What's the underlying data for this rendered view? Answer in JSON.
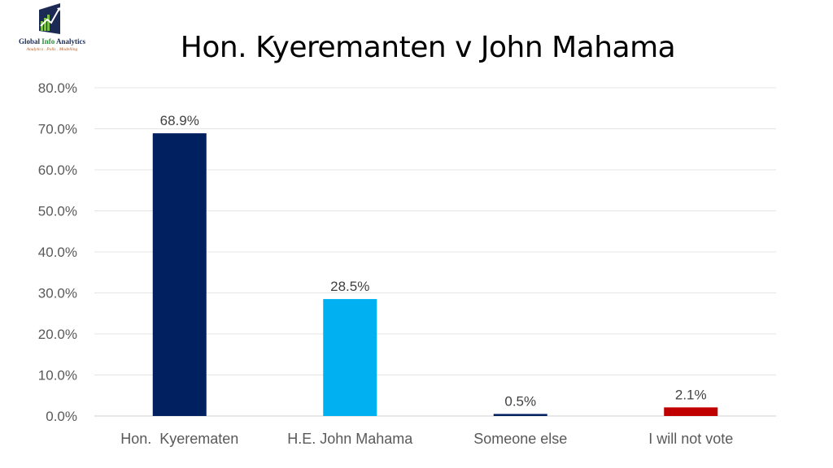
{
  "logo": {
    "name_part1": "Global ",
    "name_accent": "Info",
    "name_part2": " Analytics",
    "tagline": "Analytics . Polls . Modelling",
    "colors": {
      "navy": "#1b2a55",
      "green": "#2a8a3c",
      "orange": "#b25a1e"
    }
  },
  "chart_data": {
    "type": "bar",
    "title": "Hon. Kyeremanten v John Mahama",
    "xlabel": "",
    "ylabel": "",
    "categories": [
      "Hon.  Kyerematen",
      "H.E. John Mahama",
      "Someone else",
      "I will not vote"
    ],
    "values": [
      68.9,
      28.5,
      0.5,
      2.1
    ],
    "data_labels": [
      "68.9%",
      "28.5%",
      "0.5%",
      "2.1%"
    ],
    "colors": [
      "#002060",
      "#00b0f0",
      "#002060",
      "#c00000"
    ],
    "ylim": [
      0,
      80
    ],
    "yticks": [
      0,
      10,
      20,
      30,
      40,
      50,
      60,
      70,
      80
    ],
    "ytick_labels": [
      "0.0%",
      "10.0%",
      "20.0%",
      "30.0%",
      "40.0%",
      "50.0%",
      "60.0%",
      "70.0%",
      "80.0%"
    ],
    "grid": true,
    "legend": "none"
  }
}
